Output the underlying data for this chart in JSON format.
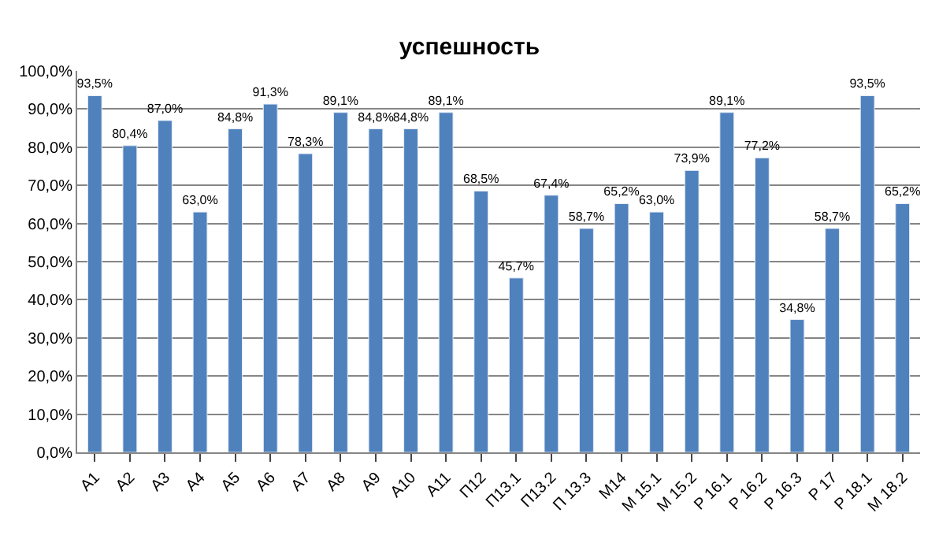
{
  "chart_data": {
    "type": "bar",
    "title": "успешность",
    "categories": [
      "А1",
      "А2",
      "А3",
      "А4",
      "А5",
      "А6",
      "А7",
      "А8",
      "А9",
      "А10",
      "А11",
      "П12",
      "П13.1",
      "П13.2",
      "П 13.3",
      "М14",
      "М 15.1",
      "М 15.2",
      "Р 16.1",
      "Р 16.2",
      "Р 16.3",
      "Р 17",
      "Р 18.1",
      "М 18.2"
    ],
    "values": [
      93.5,
      80.4,
      87.0,
      63.0,
      84.8,
      91.3,
      78.3,
      89.1,
      84.8,
      84.8,
      89.1,
      68.5,
      45.7,
      67.4,
      58.7,
      65.2,
      63.0,
      73.9,
      89.1,
      77.2,
      34.8,
      58.7,
      93.5,
      65.2
    ],
    "value_labels": [
      "93,5%",
      "80,4%",
      "87,0%",
      "63,0%",
      "84,8%",
      "91,3%",
      "78,3%",
      "89,1%",
      "84,8%",
      "84,8%",
      "89,1%",
      "68,5%",
      "45,7%",
      "67,4%",
      "58,7%",
      "65,2%",
      "63,0%",
      "73,9%",
      "89,1%",
      "77,2%",
      "34,8%",
      "58,7%",
      "93,5%",
      "65,2%"
    ],
    "color": "#4f81bd",
    "ylim": [
      0,
      100
    ],
    "yticks": [
      {
        "value": 0,
        "label": "0,0%"
      },
      {
        "value": 10,
        "label": "10,0%"
      },
      {
        "value": 20,
        "label": "20,0%"
      },
      {
        "value": 30,
        "label": "30,0%"
      },
      {
        "value": 40,
        "label": "40,0%"
      },
      {
        "value": 50,
        "label": "50,0%"
      },
      {
        "value": 60,
        "label": "60,0%"
      },
      {
        "value": 70,
        "label": "70,0%"
      },
      {
        "value": 80,
        "label": "80,0%"
      },
      {
        "value": 90,
        "label": "90,0%"
      },
      {
        "value": 100,
        "label": "100,0%"
      }
    ],
    "grid": "y",
    "legend": false
  }
}
